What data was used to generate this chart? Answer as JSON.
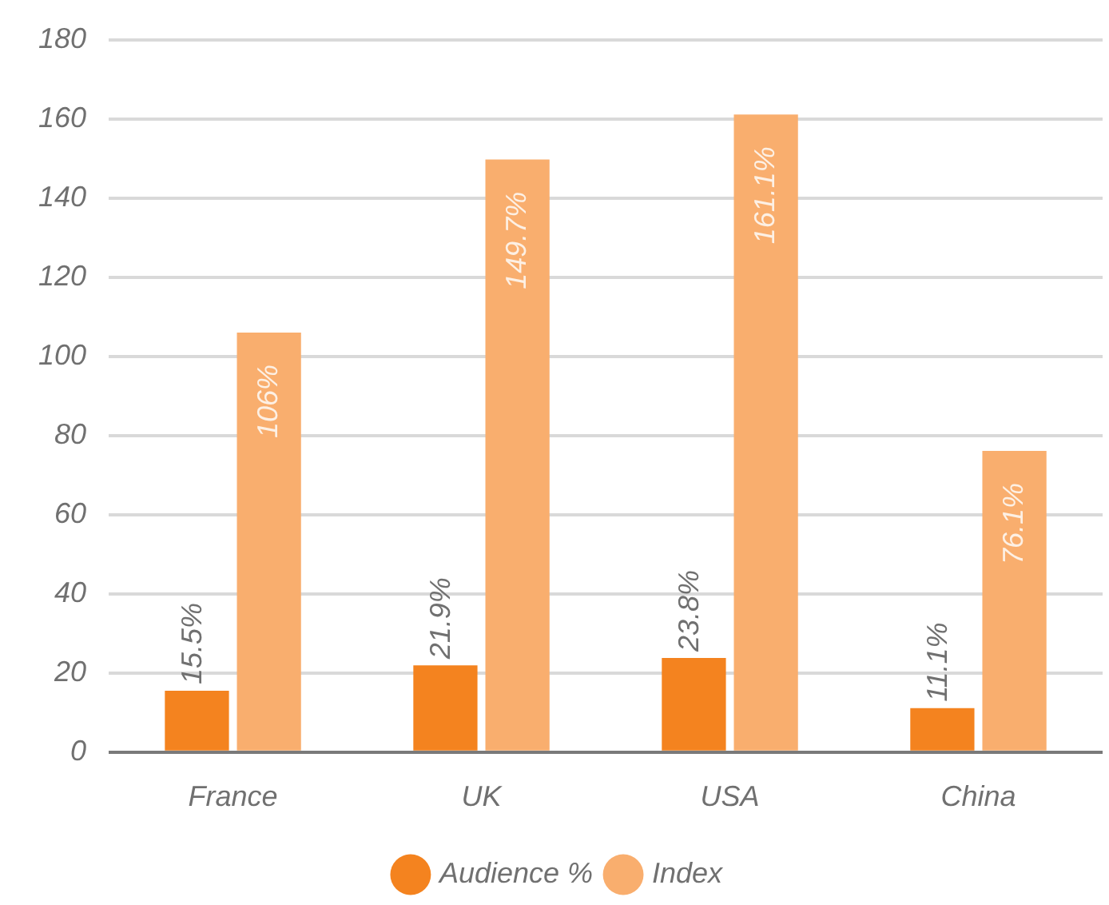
{
  "chart_data": {
    "type": "bar",
    "categories": [
      "France",
      "UK",
      "USA",
      "China"
    ],
    "series": [
      {
        "name": "Audience %",
        "color": "#f4831f",
        "values": [
          15.5,
          21.9,
          23.8,
          11.1
        ],
        "value_labels": [
          "15.5%",
          "21.9%",
          "23.8%",
          "11.1%"
        ]
      },
      {
        "name": "Index",
        "color": "#f9ae6e",
        "values": [
          106,
          149.7,
          161.1,
          76.1
        ],
        "value_labels": [
          "106%",
          "149.7%",
          "161.1%",
          "76.1%"
        ]
      }
    ],
    "ylim": [
      0,
      180
    ],
    "yticks": [
      0,
      20,
      40,
      60,
      80,
      100,
      120,
      140,
      160,
      180
    ],
    "grid": "y",
    "legend": "bottom"
  }
}
